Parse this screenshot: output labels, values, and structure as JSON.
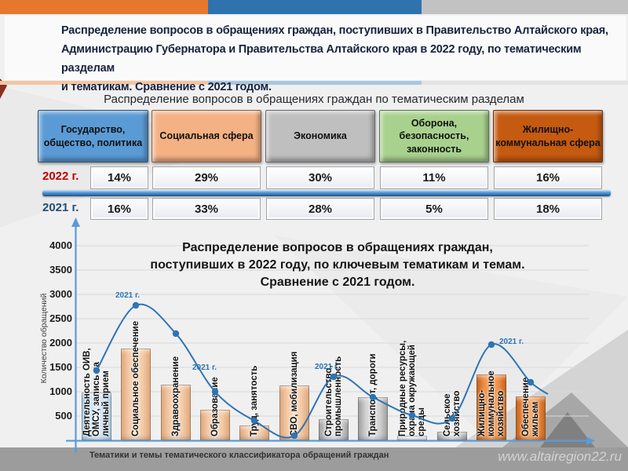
{
  "palette": {
    "accent_blue": "#2E74B5",
    "axis_blue": "#5B9BD5",
    "bar_blue": "#BDD7EE",
    "bar_peach": "#F5C9A4",
    "bar_gray": "#C6C6C6",
    "bar_gray_light": "#E9E9E9",
    "bar_orange": "#ED7D31",
    "box_blue": "#5B9BD5",
    "box_peach": "#F4B183",
    "box_gray": "#BFBFBF",
    "box_green": "#A9D18E",
    "box_dark_orange": "#C55A11",
    "year_2022_color": "#C00000",
    "year_2021_color": "#1F4E79"
  },
  "top_strip_colors": [
    "#E8772E",
    "#2E73AD",
    "#C2C2C2"
  ],
  "sub_strip_colors": [
    "#F2C5A2",
    "#A8C6E0",
    "#E4E4E4"
  ],
  "header": {
    "title_lines": [
      "Распределение вопросов в обращениях граждан, поступивших в Правительство Алтайского края,",
      "Администрацию Губернатора и Правительства Алтайского края в 2022 году, по тематическим разделам",
      "и тематикам. Сравнение с 2021 годом."
    ]
  },
  "chart_data": [
    {
      "type": "table",
      "title": "Распределение вопросов в обращениях граждан по тематическим разделам",
      "categories": [
        "Государство, общество, политика",
        "Социальная сфера",
        "Экономика",
        "Оборона, безопасность, законность",
        "Жилищно-коммунальная сфера"
      ],
      "category_colors": [
        "#5B9BD5",
        "#F4B183",
        "#BFBFBF",
        "#A9D18E",
        "#C55A11"
      ],
      "series": [
        {
          "name": "2022 г.",
          "label_color": "#C00000",
          "values": [
            "14%",
            "29%",
            "30%",
            "11%",
            "16%"
          ]
        },
        {
          "name": "2021 г.",
          "label_color": "#1F4E79",
          "values": [
            "16%",
            "33%",
            "28%",
            "5%",
            "18%"
          ]
        }
      ]
    },
    {
      "type": "bar",
      "title_lines": [
        "Распределение вопросов в обращениях граждан,",
        "поступивших в 2022 году, по ключевым тематикам и темам.",
        "Сравнение с 2021 годом."
      ],
      "ylabel": "Количество обращений",
      "xlabel": "Тематики и темы тематического классификатора обращений граждан",
      "ylim": [
        0,
        4250
      ],
      "yticks": [
        500,
        1000,
        1500,
        2000,
        2500,
        3000,
        3500,
        4000
      ],
      "grid": true,
      "legend_position": "inline-point-labels",
      "categories": [
        "Деятельность ОИВ, ОМСУ, запись на личный прием",
        "Социальное обеспечение",
        "Здравоохранение",
        "Образование",
        "Труд, занятость",
        "СВО, мобилизация",
        "Строительство, промышленность",
        "Транспорт, дороги",
        "Природные ресурсы, охрана окружающей среды",
        "Сельское хозяйство",
        "Жилищно-коммунальное хозяйство",
        "Обеспечение жильем"
      ],
      "bar_color_keys": [
        "blue",
        "peach",
        "peach",
        "peach",
        "peach",
        "peach",
        "gray",
        "gray",
        "gray_light",
        "gray",
        "orange",
        "orange"
      ],
      "series": [
        {
          "name": "2022 г.",
          "kind": "bar",
          "values": [
            980,
            1890,
            1150,
            630,
            310,
            1130,
            440,
            890,
            100,
            180,
            1360,
            900
          ]
        },
        {
          "name": "2021 г.",
          "kind": "line",
          "color": "#2E74B5",
          "values": [
            1440,
            2770,
            2200,
            1000,
            400,
            100,
            1310,
            890,
            520,
            450,
            1970,
            1200
          ]
        }
      ],
      "line_label": "2021 г."
    }
  ],
  "footer": {
    "watermark": "www.altairegion22.ru"
  }
}
